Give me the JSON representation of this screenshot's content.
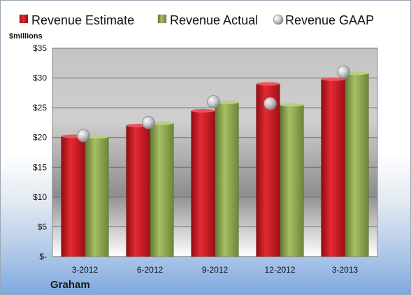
{
  "chart_data": {
    "type": "bar",
    "categories": [
      "3-2012",
      "6-2012",
      "9-2012",
      "12-2012",
      "3-2013"
    ],
    "series": [
      {
        "name": "Revenue Estimate",
        "kind": "bar",
        "color": "#c8141c",
        "values": [
          20.2,
          22.0,
          24.5,
          29.0,
          29.8
        ]
      },
      {
        "name": "Revenue Actual",
        "kind": "bar",
        "color": "#8aa34a",
        "values": [
          20.1,
          22.4,
          25.9,
          25.5,
          30.8
        ]
      },
      {
        "name": "Revenue GAAP",
        "kind": "marker",
        "color": "#b8bcc4",
        "values": [
          20.3,
          22.5,
          26.0,
          25.7,
          31.0
        ]
      }
    ],
    "ylim": [
      0,
      35
    ],
    "yticks": [
      0,
      5,
      10,
      15,
      20,
      25,
      30,
      35
    ],
    "ytick_labels": [
      "$-",
      "$5",
      "$10",
      "$15",
      "$20",
      "$25",
      "$30",
      "$35"
    ],
    "y_unit_label": "$millions",
    "company": "Graham",
    "grid": true,
    "legend_position": "top"
  }
}
